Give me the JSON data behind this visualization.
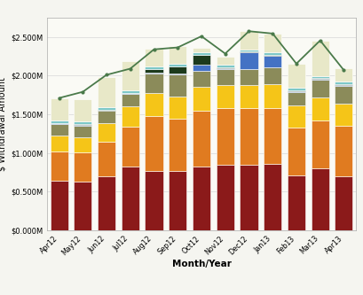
{
  "months": [
    "Apr12",
    "May12",
    "Jun12",
    "Jul12",
    "Aug12",
    "Sep12",
    "Oct12",
    "Nov12",
    "Dec12",
    "Jan13",
    "Feb13",
    "Mar13",
    "Apr13"
  ],
  "casino": [
    0.64,
    0.625,
    0.7,
    0.82,
    0.76,
    0.76,
    0.82,
    0.85,
    0.85,
    0.855,
    0.71,
    0.8,
    0.7
  ],
  "comp_a": [
    0.38,
    0.38,
    0.44,
    0.52,
    0.72,
    0.68,
    0.72,
    0.73,
    0.73,
    0.72,
    0.62,
    0.62,
    0.65
  ],
  "comp_b": [
    0.2,
    0.2,
    0.24,
    0.26,
    0.29,
    0.29,
    0.31,
    0.3,
    0.3,
    0.31,
    0.28,
    0.295,
    0.29
  ],
  "comp_c": [
    0.15,
    0.15,
    0.16,
    0.16,
    0.26,
    0.29,
    0.21,
    0.21,
    0.21,
    0.22,
    0.18,
    0.23,
    0.23
  ],
  "comp_d": [
    0.01,
    0.01,
    0.01,
    0.01,
    0.01,
    0.01,
    0.08,
    0.01,
    0.21,
    0.15,
    0.01,
    0.01,
    0.01
  ],
  "comp_e": [
    0.01,
    0.01,
    0.01,
    0.01,
    0.05,
    0.09,
    0.13,
    0.01,
    0.01,
    0.01,
    0.01,
    0.01,
    0.01
  ],
  "other_lv": [
    0.03,
    0.03,
    0.03,
    0.03,
    0.03,
    0.03,
    0.03,
    0.03,
    0.03,
    0.04,
    0.03,
    0.03,
    0.03
  ],
  "other_reg": [
    0.29,
    0.29,
    0.39,
    0.38,
    0.23,
    0.235,
    0.06,
    0.1,
    0.235,
    0.24,
    0.315,
    0.46,
    0.18
  ],
  "total_line": [
    1.71,
    1.79,
    2.01,
    2.09,
    2.34,
    2.365,
    2.51,
    2.285,
    2.575,
    2.545,
    2.155,
    2.455,
    2.07
  ],
  "colors": {
    "casino": "#8B1A1A",
    "comp_a": "#E07B20",
    "comp_b": "#F5C518",
    "comp_c": "#8B8B5A",
    "comp_d": "#4472C4",
    "comp_e": "#1C3A1C",
    "other_lv": "#7EC8C8",
    "other_reg": "#E8E8C8"
  },
  "line_color": "#4A7A4A",
  "ylabel": "$ Withdrawal Amount",
  "xlabel": "Month/Year",
  "ylim": [
    0,
    2.75
  ],
  "yticks": [
    0.0,
    0.5,
    1.0,
    1.5,
    2.0,
    2.5
  ],
  "ytick_labels": [
    "$0.000M",
    "$0.500M",
    "$1.000M",
    "$1.500M",
    "$2.000M",
    "$2.500M"
  ],
  "bg_color": "#F5F5F0",
  "plot_bg": "#FAFAF5",
  "grid_color": "#DDDDDD"
}
